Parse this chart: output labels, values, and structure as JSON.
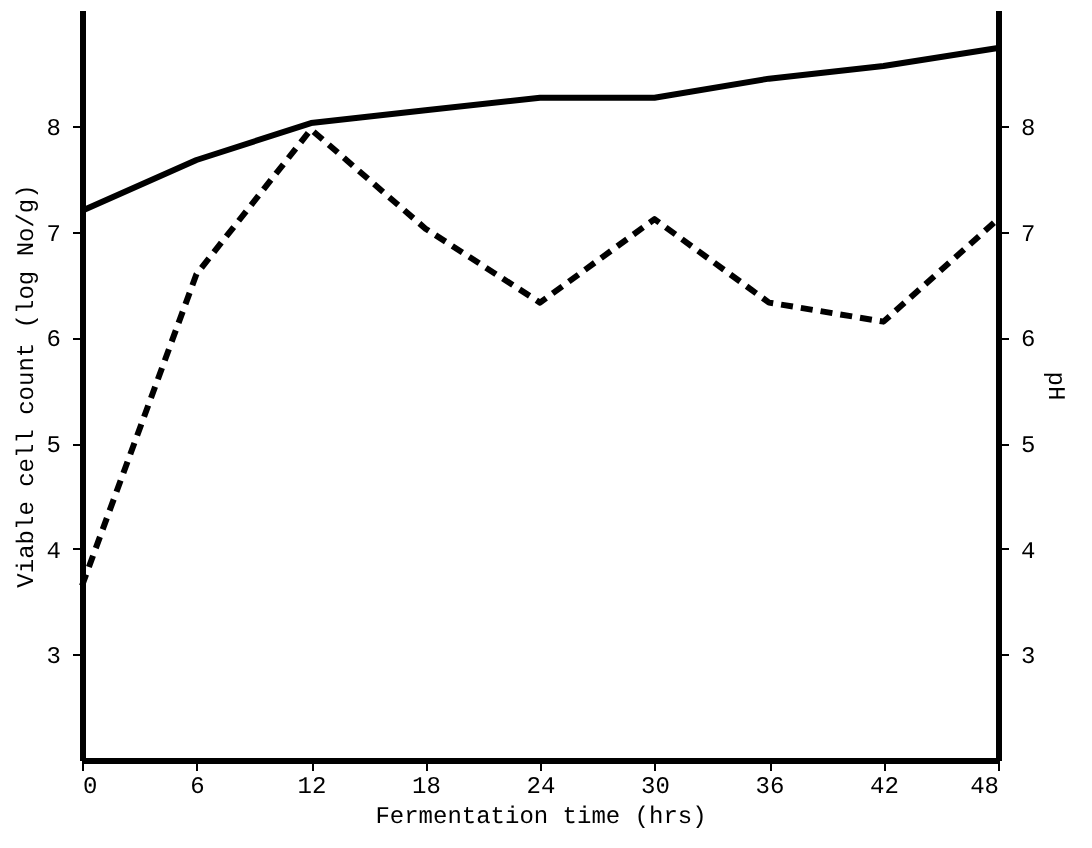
{
  "chart_data": {
    "type": "line",
    "xlabel": "Fermentation time (hrs)",
    "ylabel": "Viable cell count (log No/g)",
    "y2label": "pH",
    "x": [
      0,
      6,
      12,
      18,
      24,
      30,
      36,
      42,
      48
    ],
    "series": [
      {
        "color": "#000000",
        "line_style": "solid",
        "values": [
          7.2,
          7.68,
          8.03,
          8.15,
          8.27,
          8.27,
          8.45,
          8.57,
          8.74
        ]
      },
      {
        "color": "#000000",
        "line_style": "dashed",
        "axis": "y2",
        "values": [
          3.65,
          6.6,
          7.97,
          7.03,
          6.33,
          7.12,
          6.33,
          6.15,
          7.12
        ]
      }
    ],
    "xlim": [
      0,
      48
    ],
    "xticks": [
      0,
      6,
      12,
      18,
      24,
      30,
      36,
      42,
      48
    ],
    "ylim": [
      2,
      9.1
    ],
    "yticks": [
      3,
      4,
      5,
      6,
      7,
      8
    ],
    "y2lim": [
      2,
      9.1
    ],
    "y2ticks": [
      3,
      4,
      5,
      6,
      7,
      8
    ],
    "grid": false,
    "marker": "none"
  }
}
